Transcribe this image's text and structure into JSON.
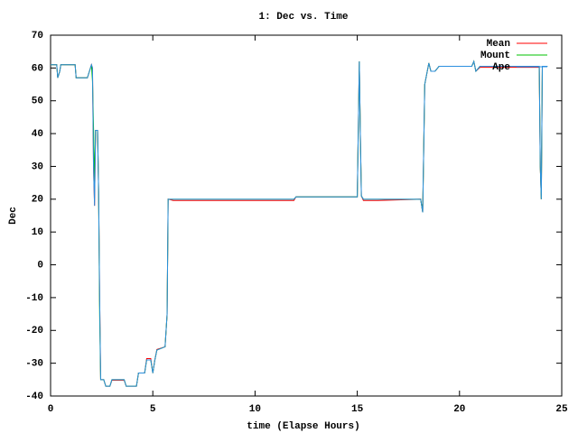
{
  "chart_data": {
    "type": "line",
    "title": "1: Dec vs. Time",
    "x_label": "time (Elapse Hours)",
    "y_label": "Dec",
    "xlim": [
      0,
      25
    ],
    "xticks": [
      0,
      5,
      10,
      15,
      20,
      25
    ],
    "ylim": [
      -40,
      70
    ],
    "yticks": [
      -40,
      -30,
      -20,
      -10,
      0,
      10,
      20,
      30,
      40,
      50,
      60,
      70
    ],
    "legend": "top right",
    "grid": false,
    "x": [
      0,
      0.3,
      0.35,
      0.45,
      0.5,
      1.2,
      1.25,
      1.8,
      1.9,
      2.0,
      2.05,
      2.1,
      2.15,
      2.2,
      2.3,
      2.35,
      2.4,
      2.45,
      2.6,
      2.7,
      2.9,
      3.0,
      3.6,
      3.7,
      4.2,
      4.25,
      4.3,
      4.6,
      4.7,
      4.9,
      5.0,
      5.1,
      5.2,
      5.6,
      5.7,
      5.75,
      6.0,
      11.9,
      12.0,
      15.0,
      15.1,
      15.15,
      15.2,
      15.3,
      16.0,
      18.1,
      18.2,
      18.3,
      18.5,
      18.6,
      18.8,
      19.0,
      20.6,
      20.7,
      20.8,
      21.0,
      23.9,
      23.95,
      24.0,
      24.05,
      24.3
    ],
    "series": [
      {
        "name": "Mean",
        "color": "#ff0000",
        "values": [
          61,
          61,
          57,
          59,
          61,
          61,
          57,
          57,
          59,
          61,
          60,
          30,
          18,
          41,
          41,
          22,
          -10,
          -35,
          -35,
          -37,
          -37,
          -35.2,
          -35.2,
          -37,
          -37,
          -35,
          -33,
          -33,
          -28.6,
          -28.6,
          -33,
          -29,
          -25.8,
          -25,
          -15,
          20,
          19.6,
          19.6,
          20.7,
          20.7,
          62,
          40,
          21,
          19.6,
          19.6,
          20,
          16,
          55,
          61.5,
          59,
          59,
          60.5,
          60.5,
          62,
          59,
          60.2,
          60.2,
          30,
          20,
          60.5,
          60.5
        ]
      },
      {
        "name": "Mount",
        "color": "#00c000",
        "values": [
          61,
          61,
          57,
          59,
          61,
          61,
          57,
          57,
          59,
          61,
          56,
          42,
          25,
          41,
          41,
          22,
          -15,
          -35,
          -35,
          -37,
          -37,
          -35,
          -35,
          -37,
          -37,
          -35,
          -33,
          -33,
          -29,
          -29,
          -33,
          -29,
          -26,
          -25,
          -15,
          20,
          20,
          20,
          20.7,
          20.7,
          62,
          40,
          21,
          20,
          20,
          20,
          16,
          55,
          61.5,
          59,
          59,
          60.5,
          60.5,
          62,
          59,
          60.5,
          60.5,
          30,
          20,
          60.5,
          60.5
        ]
      },
      {
        "name": "Ape",
        "color": "#2c8fdf",
        "values": [
          61,
          61,
          57,
          59,
          61,
          61,
          57,
          57,
          59,
          61,
          60,
          30,
          18,
          41,
          41,
          22,
          -10,
          -35,
          -35,
          -37,
          -37,
          -35,
          -35,
          -37,
          -37,
          -35,
          -33,
          -33,
          -29,
          -29,
          -33,
          -29,
          -26,
          -25,
          -15,
          20,
          20,
          20,
          20.7,
          20.7,
          62,
          40,
          21,
          20,
          20,
          20,
          16,
          55,
          61.5,
          59,
          59,
          60.5,
          60.5,
          62,
          59,
          60.5,
          60.5,
          30,
          20,
          60.5,
          60.5
        ]
      }
    ]
  }
}
